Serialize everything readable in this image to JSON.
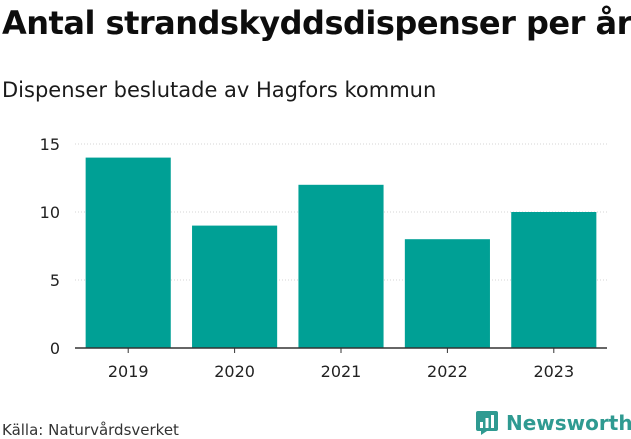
{
  "chart_data": {
    "type": "bar",
    "title": "Antal strandskyddsdispenser per år",
    "subtitle": "Dispenser beslutade av Hagfors kommun",
    "categories": [
      "2019",
      "2020",
      "2021",
      "2022",
      "2023"
    ],
    "values": [
      14,
      9,
      12,
      8,
      10
    ],
    "ylim": [
      0,
      15
    ],
    "yticks": [
      "0",
      "5",
      "10",
      "15"
    ],
    "grid": true,
    "bar_color": "#00a095"
  },
  "footer": {
    "source": "Källa: Naturvårdsverket",
    "brand": "Newsworthy",
    "brand_color": "#2f9a91"
  }
}
